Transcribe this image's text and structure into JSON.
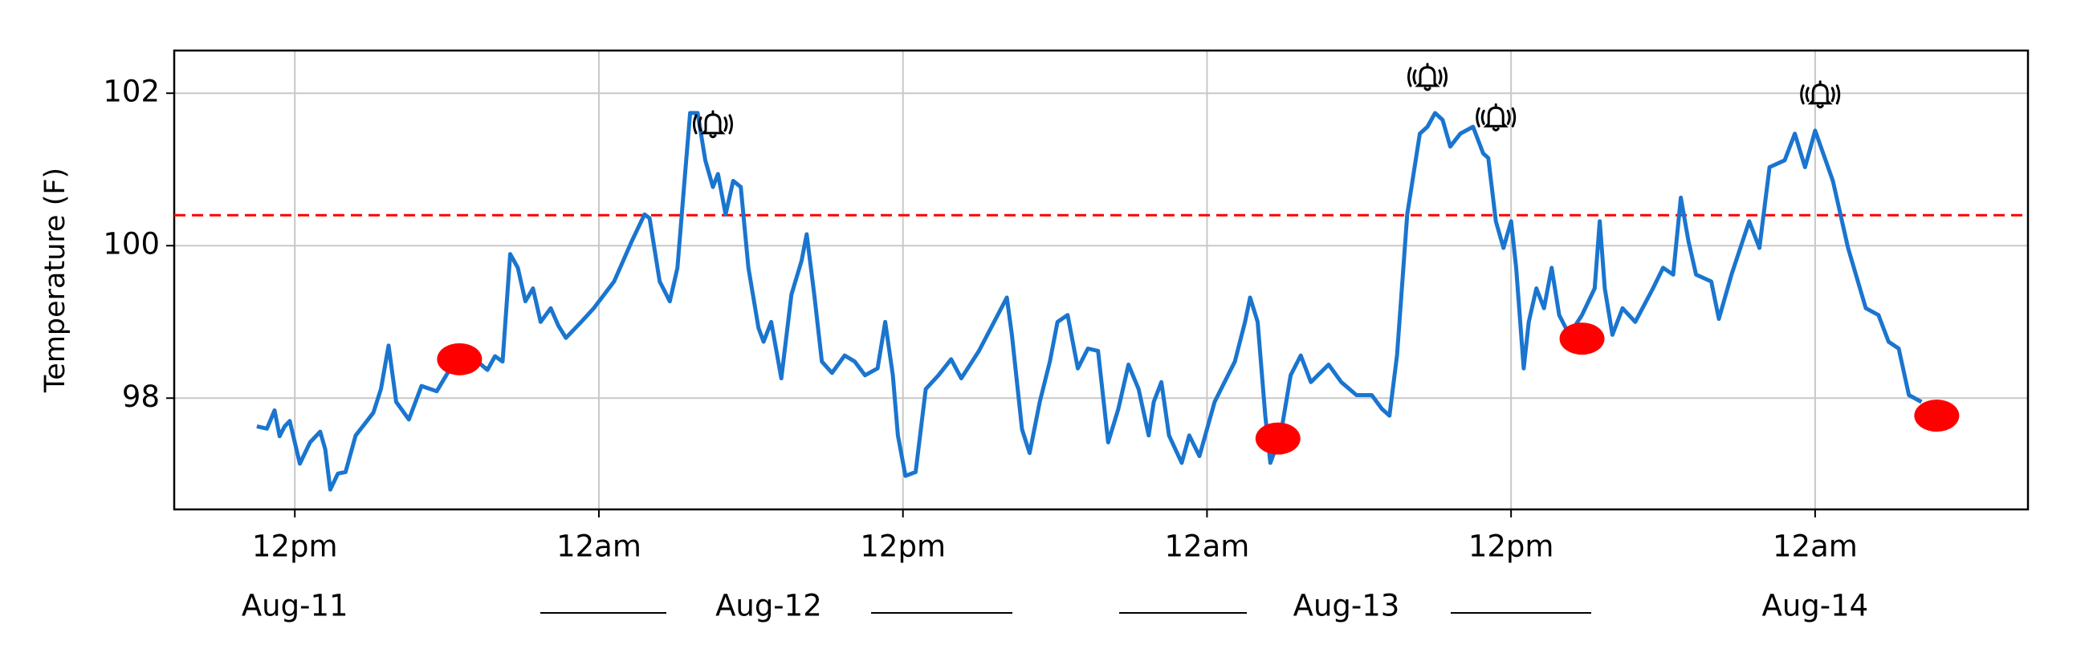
{
  "chart_data": {
    "type": "line",
    "y_label": "Temperature (F)",
    "color": "#1a75cf",
    "grid": true,
    "xlim": [
      7.24,
      80.4
    ],
    "ylim": [
      96.54,
      102.56
    ],
    "yticks": [
      98,
      100,
      102
    ],
    "xticks": [
      {
        "value": 12,
        "label": "12pm"
      },
      {
        "value": 24,
        "label": "12am"
      },
      {
        "value": 36,
        "label": "12pm"
      },
      {
        "value": 48,
        "label": "12am"
      },
      {
        "value": 60,
        "label": "12pm"
      },
      {
        "value": 72,
        "label": "12am"
      }
    ],
    "date_ticks": [
      {
        "value": 12,
        "label": "Aug-11"
      },
      {
        "value": 30.7,
        "label": "Aug-12"
      },
      {
        "value": 53.5,
        "label": "Aug-13"
      },
      {
        "value": 72,
        "label": "Aug-14"
      }
    ],
    "x": [
      10.5,
      10.9,
      11.2,
      11.4,
      11.6,
      11.8,
      12.2,
      12.6,
      13.0,
      13.2,
      13.4,
      13.7,
      14.0,
      14.4,
      14.8,
      15.1,
      15.4,
      15.7,
      16.0,
      16.5,
      17.0,
      17.6,
      18.1,
      18.6,
      19.1,
      19.6,
      19.9,
      20.2,
      20.5,
      20.8,
      21.1,
      21.4,
      21.7,
      22.1,
      22.4,
      22.7,
      23.3,
      23.8,
      24.6,
      25.3,
      25.8,
      26.0,
      26.4,
      26.8,
      27.1,
      27.4,
      27.6,
      27.9,
      28.2,
      28.5,
      28.7,
      29.0,
      29.3,
      29.6,
      29.9,
      30.3,
      30.5,
      30.8,
      31.2,
      31.6,
      32.0,
      32.2,
      32.5,
      32.8,
      33.2,
      33.7,
      34.1,
      34.5,
      35.0,
      35.3,
      35.6,
      35.8,
      36.1,
      36.5,
      36.9,
      37.4,
      37.9,
      38.3,
      39.0,
      40.1,
      40.3,
      40.7,
      41.0,
      41.4,
      41.8,
      42.1,
      42.5,
      42.9,
      43.3,
      43.7,
      44.1,
      44.5,
      44.9,
      45.3,
      45.7,
      45.9,
      46.2,
      46.5,
      47.0,
      47.3,
      47.7,
      48.3,
      49.1,
      49.5,
      49.7,
      50.0,
      50.3,
      50.5,
      50.9,
      51.3,
      51.7,
      52.1,
      52.8,
      53.3,
      53.9,
      54.5,
      54.9,
      55.2,
      55.5,
      55.9,
      56.4,
      56.7,
      57.0,
      57.3,
      57.6,
      58.0,
      58.5,
      58.9,
      59.1,
      59.4,
      59.7,
      60.0,
      60.2,
      60.5,
      60.7,
      61.0,
      61.3,
      61.6,
      61.9,
      62.3,
      62.8,
      63.3,
      63.5,
      63.7,
      64.0,
      64.4,
      64.9,
      65.6,
      66.0,
      66.4,
      66.7,
      67.0,
      67.3,
      67.9,
      68.2,
      68.7,
      69.4,
      69.8,
      70.2,
      70.8,
      71.2,
      71.6,
      72.0,
      72.7,
      73.3,
      74.0,
      74.5,
      74.9,
      75.3,
      75.7,
      76.2
    ],
    "values": [
      97.63,
      97.6,
      97.84,
      97.5,
      97.63,
      97.7,
      97.14,
      97.42,
      97.56,
      97.33,
      96.8,
      97.01,
      97.03,
      97.51,
      97.68,
      97.81,
      98.12,
      98.69,
      97.95,
      97.72,
      98.16,
      98.09,
      98.37,
      98.48,
      98.51,
      98.37,
      98.55,
      98.48,
      99.89,
      99.71,
      99.27,
      99.44,
      99.0,
      99.18,
      98.95,
      98.79,
      99.0,
      99.18,
      99.53,
      100.06,
      100.41,
      100.36,
      99.53,
      99.27,
      99.71,
      100.94,
      101.74,
      101.74,
      101.12,
      100.77,
      100.94,
      100.41,
      100.85,
      100.77,
      99.71,
      98.92,
      98.74,
      99.0,
      98.26,
      99.36,
      99.8,
      100.15,
      99.36,
      98.48,
      98.33,
      98.56,
      98.48,
      98.3,
      98.39,
      99.0,
      98.3,
      97.51,
      96.98,
      97.03,
      98.12,
      98.3,
      98.51,
      98.26,
      98.62,
      99.32,
      98.83,
      97.59,
      97.28,
      97.95,
      98.48,
      99.0,
      99.09,
      98.39,
      98.65,
      98.62,
      97.42,
      97.86,
      98.44,
      98.12,
      97.51,
      97.95,
      98.21,
      97.51,
      97.15,
      97.51,
      97.24,
      97.95,
      98.48,
      99.0,
      99.32,
      99.0,
      97.77,
      97.15,
      97.51,
      98.3,
      98.56,
      98.21,
      98.44,
      98.21,
      98.04,
      98.04,
      97.86,
      97.77,
      98.56,
      100.41,
      101.47,
      101.56,
      101.74,
      101.65,
      101.3,
      101.47,
      101.56,
      101.21,
      101.15,
      100.32,
      99.97,
      100.32,
      99.71,
      98.39,
      99.0,
      99.44,
      99.18,
      99.71,
      99.09,
      98.83,
      99.09,
      99.44,
      100.32,
      99.44,
      98.83,
      99.18,
      99.0,
      99.44,
      99.71,
      99.62,
      100.63,
      100.06,
      99.62,
      99.53,
      99.04,
      99.62,
      100.32,
      99.97,
      101.03,
      101.12,
      101.47,
      101.03,
      101.51,
      100.85,
      99.97,
      99.18,
      99.09,
      98.74,
      98.65,
      98.04,
      97.95
    ],
    "threshold": {
      "value": 100.4,
      "color": "#ff0000"
    },
    "markers": {
      "color": "#ff0000",
      "x": [
        18.5,
        50.8,
        62.8,
        76.8
      ],
      "values": [
        98.51,
        97.47,
        98.78,
        97.77
      ]
    },
    "alerts": {
      "x": [
        28.5,
        56.7,
        59.4,
        72.2
      ]
    }
  }
}
